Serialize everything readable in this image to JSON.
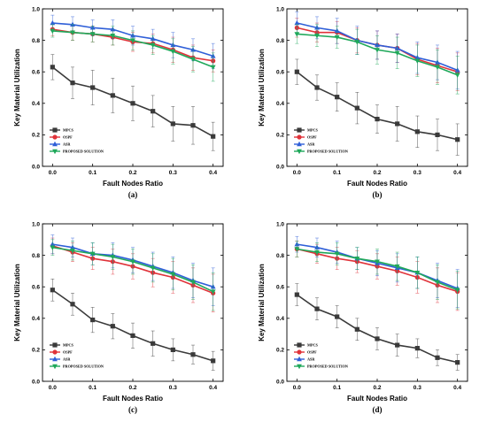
{
  "figure": {
    "colors": {
      "MPCS": "#3a3a3a",
      "OSPF": "#e0333a",
      "ASR": "#2f5fd8",
      "PROPOSED SOLUTION": "#1fa85a",
      "axis": "#000000"
    }
  },
  "chart_data": [
    {
      "type": "line",
      "panel_label": "(a)",
      "xlabel": "Fault Nodes Ratio",
      "ylabel": "Key Material Utilization",
      "xlim": [
        -0.025,
        0.425
      ],
      "ylim": [
        0.0,
        1.0
      ],
      "xticks": [
        "0.0",
        "0.1",
        "0.2",
        "0.3",
        "0.4"
      ],
      "yticks": [
        "0.0",
        "0.2",
        "0.4",
        "0.6",
        "0.8",
        "1.0"
      ],
      "legend_position": "lower-left",
      "x": [
        0,
        0.05,
        0.1,
        0.15,
        0.2,
        0.25,
        0.3,
        0.35,
        0.4
      ],
      "series": [
        {
          "name": "MPCS",
          "marker": "square",
          "values": [
            0.63,
            0.53,
            0.5,
            0.45,
            0.4,
            0.35,
            0.27,
            0.26,
            0.19
          ],
          "errors": [
            0.08,
            0.1,
            0.11,
            0.11,
            0.11,
            0.1,
            0.11,
            0.12,
            0.09
          ]
        },
        {
          "name": "OSPF",
          "marker": "circle",
          "values": [
            0.87,
            0.85,
            0.84,
            0.82,
            0.79,
            0.78,
            0.74,
            0.69,
            0.67
          ],
          "errors": [
            0.04,
            0.05,
            0.05,
            0.05,
            0.06,
            0.06,
            0.08,
            0.08,
            0.07
          ]
        },
        {
          "name": "ASR",
          "marker": "triangle-up",
          "values": [
            0.91,
            0.9,
            0.88,
            0.87,
            0.83,
            0.81,
            0.77,
            0.74,
            0.7
          ],
          "errors": [
            0.05,
            0.05,
            0.05,
            0.06,
            0.06,
            0.06,
            0.08,
            0.07,
            0.08
          ]
        },
        {
          "name": "PROPOSED SOLUTION",
          "marker": "triangle-down",
          "values": [
            0.86,
            0.85,
            0.84,
            0.83,
            0.8,
            0.77,
            0.73,
            0.68,
            0.63
          ],
          "errors": [
            0.04,
            0.05,
            0.05,
            0.06,
            0.06,
            0.06,
            0.08,
            0.08,
            0.09
          ]
        }
      ]
    },
    {
      "type": "line",
      "panel_label": "(b)",
      "xlabel": "Fault Nodes Ratio",
      "ylabel": "Key Material Utilization",
      "xlim": [
        -0.025,
        0.425
      ],
      "ylim": [
        0.0,
        1.0
      ],
      "xticks": [
        "0.0",
        "0.1",
        "0.2",
        "0.3",
        "0.4"
      ],
      "yticks": [
        "0.0",
        "0.2",
        "0.4",
        "0.6",
        "0.8",
        "1.0"
      ],
      "legend_position": "lower-left",
      "x": [
        0,
        0.05,
        0.1,
        0.15,
        0.2,
        0.25,
        0.3,
        0.35,
        0.4
      ],
      "series": [
        {
          "name": "MPCS",
          "marker": "square",
          "values": [
            0.6,
            0.5,
            0.44,
            0.37,
            0.3,
            0.27,
            0.22,
            0.2,
            0.17
          ],
          "errors": [
            0.08,
            0.08,
            0.09,
            0.1,
            0.09,
            0.11,
            0.1,
            0.1,
            0.1
          ]
        },
        {
          "name": "OSPF",
          "marker": "circle",
          "values": [
            0.88,
            0.85,
            0.85,
            0.8,
            0.77,
            0.75,
            0.68,
            0.64,
            0.6
          ],
          "errors": [
            0.06,
            0.06,
            0.07,
            0.08,
            0.09,
            0.09,
            0.1,
            0.11,
            0.12
          ]
        },
        {
          "name": "ASR",
          "marker": "triangle-up",
          "values": [
            0.91,
            0.88,
            0.86,
            0.8,
            0.77,
            0.75,
            0.69,
            0.66,
            0.61
          ],
          "errors": [
            0.07,
            0.07,
            0.08,
            0.09,
            0.09,
            0.09,
            0.1,
            0.11,
            0.12
          ]
        },
        {
          "name": "PROPOSED SOLUTION",
          "marker": "triangle-down",
          "values": [
            0.84,
            0.83,
            0.82,
            0.79,
            0.74,
            0.72,
            0.67,
            0.63,
            0.58
          ],
          "errors": [
            0.06,
            0.07,
            0.07,
            0.08,
            0.09,
            0.1,
            0.1,
            0.11,
            0.12
          ]
        }
      ]
    },
    {
      "type": "line",
      "panel_label": "(c)",
      "xlabel": "Fault Nodes Ratio",
      "ylabel": "Key Material Utilization",
      "xlim": [
        -0.025,
        0.425
      ],
      "ylim": [
        0.0,
        1.0
      ],
      "xticks": [
        "0.0",
        "0.1",
        "0.2",
        "0.3",
        "0.4"
      ],
      "yticks": [
        "0.0",
        "0.2",
        "0.4",
        "0.6",
        "0.8",
        "1.0"
      ],
      "legend_position": "lower-left",
      "x": [
        0,
        0.05,
        0.1,
        0.15,
        0.2,
        0.25,
        0.3,
        0.35,
        0.4
      ],
      "series": [
        {
          "name": "MPCS",
          "marker": "square",
          "values": [
            0.58,
            0.49,
            0.39,
            0.35,
            0.29,
            0.24,
            0.2,
            0.17,
            0.13
          ],
          "errors": [
            0.07,
            0.07,
            0.08,
            0.08,
            0.08,
            0.08,
            0.07,
            0.06,
            0.06
          ]
        },
        {
          "name": "OSPF",
          "marker": "circle",
          "values": [
            0.86,
            0.82,
            0.78,
            0.76,
            0.73,
            0.69,
            0.66,
            0.61,
            0.56
          ],
          "errors": [
            0.05,
            0.06,
            0.07,
            0.08,
            0.08,
            0.09,
            0.1,
            0.11,
            0.12
          ]
        },
        {
          "name": "ASR",
          "marker": "triangle-up",
          "values": [
            0.87,
            0.85,
            0.81,
            0.8,
            0.77,
            0.73,
            0.69,
            0.64,
            0.6
          ],
          "errors": [
            0.06,
            0.06,
            0.07,
            0.08,
            0.08,
            0.09,
            0.1,
            0.11,
            0.12
          ]
        },
        {
          "name": "PROPOSED SOLUTION",
          "marker": "triangle-down",
          "values": [
            0.85,
            0.83,
            0.81,
            0.79,
            0.76,
            0.72,
            0.68,
            0.63,
            0.57
          ],
          "errors": [
            0.05,
            0.06,
            0.07,
            0.08,
            0.08,
            0.09,
            0.1,
            0.11,
            0.12
          ]
        }
      ]
    },
    {
      "type": "line",
      "panel_label": "(d)",
      "xlabel": "Fault Nodes Ratio",
      "ylabel": "Key Material Utilization",
      "xlim": [
        -0.025,
        0.425
      ],
      "ylim": [
        0.0,
        1.0
      ],
      "xticks": [
        "0.0",
        "0.1",
        "0.2",
        "0.3",
        "0.4"
      ],
      "yticks": [
        "0.0",
        "0.2",
        "0.4",
        "0.6",
        "0.8",
        "1.0"
      ],
      "legend_position": "lower-left",
      "x": [
        0,
        0.05,
        0.1,
        0.15,
        0.2,
        0.25,
        0.3,
        0.35,
        0.4
      ],
      "series": [
        {
          "name": "MPCS",
          "marker": "square",
          "values": [
            0.55,
            0.46,
            0.41,
            0.33,
            0.27,
            0.23,
            0.21,
            0.15,
            0.12
          ],
          "errors": [
            0.07,
            0.07,
            0.07,
            0.07,
            0.07,
            0.07,
            0.06,
            0.05,
            0.05
          ]
        },
        {
          "name": "OSPF",
          "marker": "circle",
          "values": [
            0.84,
            0.81,
            0.78,
            0.76,
            0.73,
            0.7,
            0.66,
            0.61,
            0.57
          ],
          "errors": [
            0.05,
            0.06,
            0.07,
            0.07,
            0.08,
            0.09,
            0.1,
            0.11,
            0.12
          ]
        },
        {
          "name": "ASR",
          "marker": "triangle-up",
          "values": [
            0.87,
            0.85,
            0.82,
            0.78,
            0.75,
            0.72,
            0.69,
            0.64,
            0.59
          ],
          "errors": [
            0.05,
            0.06,
            0.07,
            0.07,
            0.08,
            0.09,
            0.1,
            0.11,
            0.12
          ]
        },
        {
          "name": "PROPOSED SOLUTION",
          "marker": "triangle-down",
          "values": [
            0.84,
            0.82,
            0.81,
            0.78,
            0.76,
            0.73,
            0.69,
            0.63,
            0.58
          ],
          "errors": [
            0.05,
            0.06,
            0.07,
            0.07,
            0.08,
            0.09,
            0.1,
            0.11,
            0.12
          ]
        }
      ]
    }
  ]
}
